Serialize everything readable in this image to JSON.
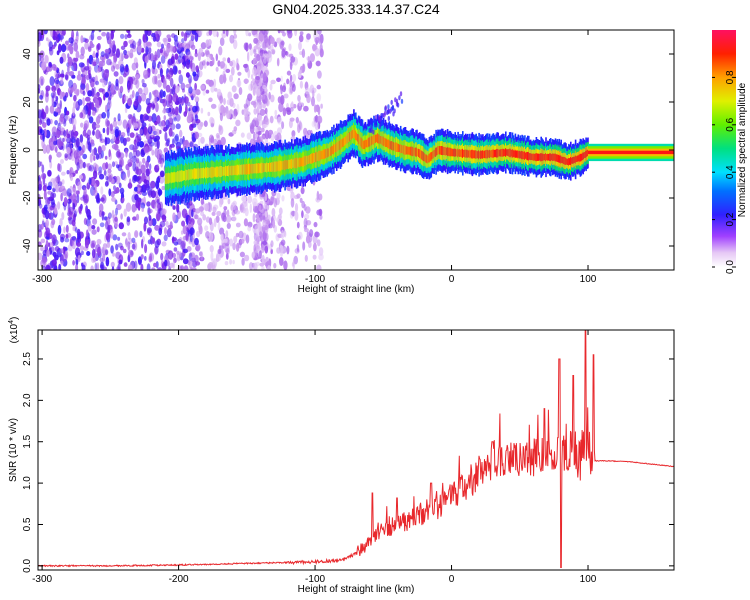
{
  "figure": {
    "title": "GN04.2025.333.14.37.C24"
  },
  "chart_data": [
    {
      "type": "heatmap",
      "xlabel": "Height of straight line (km)",
      "ylabel": "Frequency (Hz)",
      "xlim": [
        -303,
        163
      ],
      "ylim": [
        -50,
        50
      ],
      "xticks": [
        -300,
        -200,
        -100,
        0,
        100
      ],
      "yticks": [
        -40,
        -20,
        0,
        20,
        40
      ],
      "colorbar": {
        "label": "Normalized spectral amplitude",
        "range": [
          0.0,
          1.0
        ],
        "ticks": [
          0.0,
          0.2,
          0.4,
          0.6,
          0.8
        ],
        "colormap": "rainbow (white-purple-blue-cyan-green-yellow-orange-red)"
      },
      "ridge": {
        "description": "dominant frequency vs height",
        "points": [
          [
            -210,
            -12
          ],
          [
            -190,
            -10
          ],
          [
            -170,
            -9
          ],
          [
            -150,
            -8
          ],
          [
            -130,
            -7
          ],
          [
            -110,
            -5
          ],
          [
            -100,
            -3
          ],
          [
            -90,
            -1
          ],
          [
            -80,
            3
          ],
          [
            -72,
            7
          ],
          [
            -65,
            2
          ],
          [
            -55,
            5
          ],
          [
            -45,
            2
          ],
          [
            -35,
            0
          ],
          [
            -25,
            -1
          ],
          [
            -18,
            -4
          ],
          [
            -10,
            0
          ],
          [
            0,
            -1
          ],
          [
            20,
            -2
          ],
          [
            40,
            -1
          ],
          [
            60,
            -3
          ],
          [
            75,
            -3
          ],
          [
            85,
            -5
          ],
          [
            95,
            -3
          ],
          [
            100,
            -1
          ],
          [
            163,
            -1
          ]
        ]
      }
    },
    {
      "type": "line",
      "xlabel": "Height of straight line (km)",
      "ylabel": "SNR (10 * v/v)",
      "y_multiplier": "(x10^4)",
      "xlim": [
        -303,
        163
      ],
      "ylim": [
        -0.05,
        2.85
      ],
      "xticks": [
        -300,
        -200,
        -100,
        0,
        100
      ],
      "yticks": [
        0.0,
        0.5,
        1.0,
        1.5,
        2.0,
        2.5
      ],
      "line_color": "#e8282c",
      "series": [
        {
          "x": [
            -303,
            -250,
            -200,
            -150,
            -120,
            -100,
            -80,
            -70,
            -60,
            -50,
            -40,
            -30,
            -20,
            -10,
            0,
            10,
            20,
            30,
            40,
            50,
            60,
            70,
            80,
            90,
            95,
            100,
            103,
            106,
            110,
            130,
            163
          ],
          "y": [
            0.0,
            0.0,
            0.01,
            0.03,
            0.04,
            0.05,
            0.07,
            0.15,
            0.3,
            0.42,
            0.5,
            0.55,
            0.65,
            0.72,
            0.85,
            0.95,
            1.1,
            1.25,
            1.3,
            1.3,
            1.32,
            1.35,
            1.38,
            1.35,
            1.3,
            1.5,
            1.28,
            1.27,
            1.27,
            1.26,
            1.2
          ]
        }
      ],
      "spikes": [
        {
          "x": -58,
          "peak": 0.88
        },
        {
          "x": -40,
          "peak": 0.82
        },
        {
          "x": -15,
          "peak": 1.0
        },
        {
          "x": 30,
          "peak": 1.5
        },
        {
          "x": 68,
          "peak": 1.9
        },
        {
          "x": 78,
          "peak": 1.55
        },
        {
          "x": 79,
          "peak": 2.5
        },
        {
          "x": 89,
          "peak": 2.3
        },
        {
          "x": 98,
          "peak": 2.85
        },
        {
          "x": 104,
          "peak": 2.55
        }
      ]
    }
  ]
}
